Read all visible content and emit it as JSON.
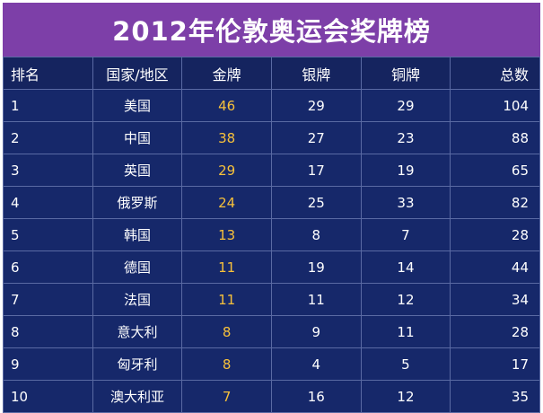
{
  "title": "2012年伦敦奥运会奖牌榜",
  "colors": {
    "title_bg": "#7d3fa8",
    "table_bg": "#16286a",
    "gold_text": "#f7c13b",
    "grid": "#5a6aa3"
  },
  "headers": [
    "排名",
    "国家/地区",
    "金牌",
    "银牌",
    "铜牌",
    "总数"
  ],
  "rows": [
    {
      "rank": "1",
      "country": "美国",
      "gold": 46,
      "silver": 29,
      "bronze": 29,
      "total": 104
    },
    {
      "rank": "2",
      "country": "中国",
      "gold": 38,
      "silver": 27,
      "bronze": 23,
      "total": 88
    },
    {
      "rank": "3",
      "country": "英国",
      "gold": 29,
      "silver": 17,
      "bronze": 19,
      "total": 65
    },
    {
      "rank": "4",
      "country": "俄罗斯",
      "gold": 24,
      "silver": 25,
      "bronze": 33,
      "total": 82
    },
    {
      "rank": "5",
      "country": "韩国",
      "gold": 13,
      "silver": 8,
      "bronze": 7,
      "total": 28
    },
    {
      "rank": "6",
      "country": "德国",
      "gold": 11,
      "silver": 19,
      "bronze": 14,
      "total": 44
    },
    {
      "rank": "7",
      "country": "法国",
      "gold": 11,
      "silver": 11,
      "bronze": 12,
      "total": 34
    },
    {
      "rank": "8",
      "country": "意大利",
      "gold": 8,
      "silver": 9,
      "bronze": 11,
      "total": 28
    },
    {
      "rank": "9",
      "country": "匈牙利",
      "gold": 8,
      "silver": 4,
      "bronze": 5,
      "total": 17
    },
    {
      "rank": "10",
      "country": "澳大利亚",
      "gold": 7,
      "silver": 16,
      "bronze": 12,
      "total": 35
    }
  ],
  "chart_data": {
    "type": "table",
    "title": "2012年伦敦奥运会奖牌榜",
    "columns": [
      "排名",
      "国家/地区",
      "金牌",
      "银牌",
      "铜牌",
      "总数"
    ],
    "rows": [
      [
        "1",
        "美国",
        46,
        29,
        29,
        104
      ],
      [
        "2",
        "中国",
        38,
        27,
        23,
        88
      ],
      [
        "3",
        "英国",
        29,
        17,
        19,
        65
      ],
      [
        "4",
        "俄罗斯",
        24,
        25,
        33,
        82
      ],
      [
        "5",
        "韩国",
        13,
        8,
        7,
        28
      ],
      [
        "6",
        "德国",
        11,
        19,
        14,
        44
      ],
      [
        "7",
        "法国",
        11,
        11,
        12,
        34
      ],
      [
        "8",
        "意大利",
        8,
        9,
        11,
        28
      ],
      [
        "9",
        "匈牙利",
        8,
        4,
        5,
        17
      ],
      [
        "10",
        "澳大利亚",
        7,
        16,
        12,
        35
      ]
    ]
  }
}
